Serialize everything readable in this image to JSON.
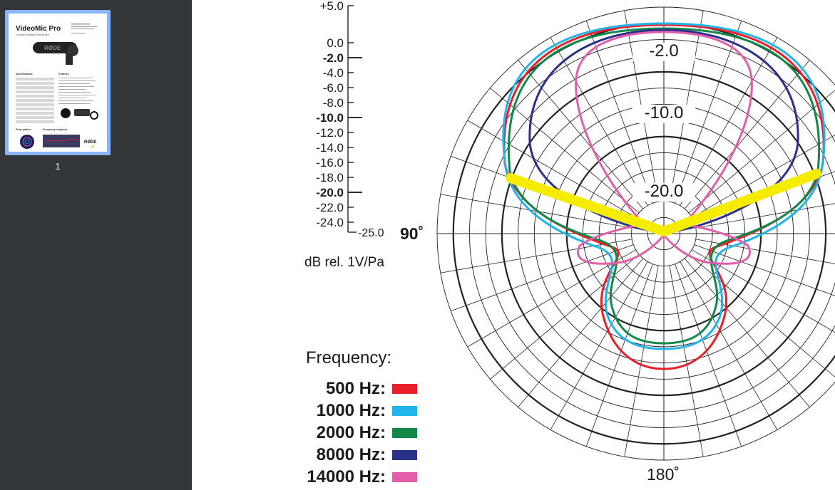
{
  "sidebar": {
    "thumbnail": {
      "title": "VideoMic Pro",
      "subtitle": "Compact Shotgun Microphone",
      "brand": "RØDE",
      "sections": [
        "Specifications",
        "Features",
        "Polar pattern",
        "Frequency response"
      ]
    },
    "page_number": "1"
  },
  "scale": {
    "ticks": [
      {
        "label": "+5.0",
        "bold": false
      },
      {
        "label": "0.0",
        "bold": false
      },
      {
        "label": "-2.0",
        "bold": true
      },
      {
        "label": "-4.0",
        "bold": false
      },
      {
        "label": "-6.0",
        "bold": false
      },
      {
        "label": "-8.0",
        "bold": false
      },
      {
        "label": "-10.0",
        "bold": true
      },
      {
        "label": "-12.0",
        "bold": false
      },
      {
        "label": "-14.0",
        "bold": false
      },
      {
        "label": "-16.0",
        "bold": false
      },
      {
        "label": "-18.0",
        "bold": false
      },
      {
        "label": "-20.0",
        "bold": true
      },
      {
        "label": "-22.0",
        "bold": false
      },
      {
        "label": "-24.0",
        "bold": false
      }
    ],
    "bottom_label": "-25.0",
    "unit": "dB rel. 1V/Pa"
  },
  "polar": {
    "angle_90": "90˚",
    "angle_180": "180˚",
    "ring_labels": [
      "-2.0",
      "-10.0",
      "-20.0"
    ]
  },
  "legend": {
    "title": "Frequency:",
    "items": [
      {
        "label": "500 Hz:",
        "color": "#e8202a"
      },
      {
        "label": "1000 Hz:",
        "color": "#1fb4ea"
      },
      {
        "label": "2000 Hz:",
        "color": "#11884a"
      },
      {
        "label": "8000 Hz:",
        "color": "#2b3088"
      },
      {
        "label": "14000 Hz:",
        "color": "#e35ea9"
      }
    ]
  },
  "annotation": {
    "color": "#f5ec00",
    "shape": "v-shape"
  }
}
